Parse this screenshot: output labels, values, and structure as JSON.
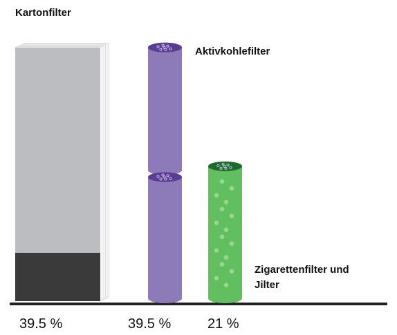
{
  "chart_data": {
    "type": "pictorial-bar",
    "categories": [
      "Kartonfilter",
      "Aktivkohlefilter",
      "Zigarettenfilter und Jilter"
    ],
    "values": [
      39.5,
      39.5,
      21
    ],
    "value_labels": [
      "39.5 %",
      "39.5 %",
      "21 %"
    ],
    "colors": [
      "#bcbdc0",
      "#8d7ab8",
      "#62bf5f"
    ]
  }
}
